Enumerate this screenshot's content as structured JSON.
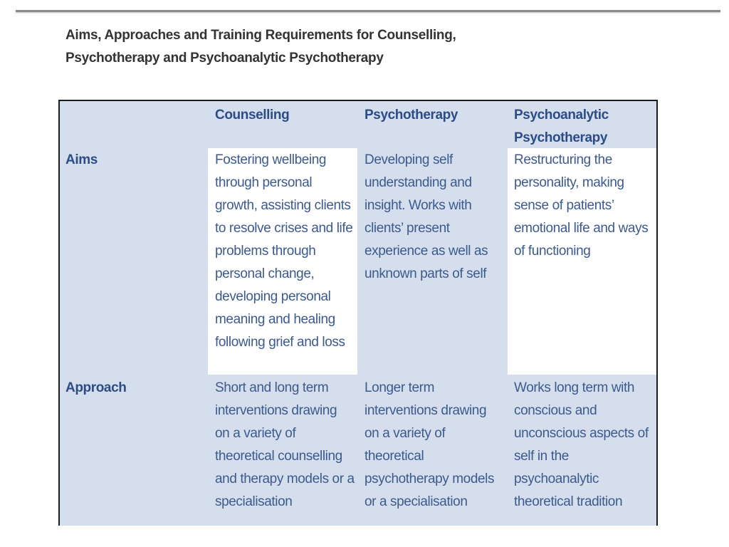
{
  "title": "Aims, Approaches and Training Requirements for Counselling, Psychotherapy and Psychoanalytic Psychotherapy",
  "table": {
    "columns": [
      "",
      "Counselling",
      "Psychotherapy",
      "Psychoanalytic Psychotherapy"
    ],
    "rows": [
      {
        "label": "Aims",
        "cells": [
          "Fostering wellbeing through personal growth, assisting clients to resolve crises and life problems through personal change, developing personal meaning and healing following grief and loss",
          "Developing self understanding and insight. Works with clients’ present experience as well as unknown parts of self",
          "Restructuring the personality, making sense of patients’ emotional life and ways of functioning"
        ]
      },
      {
        "label": "Approach",
        "cells": [
          "Short and long term interventions drawing on a variety of theoretical counselling and therapy models or a specialisation",
          "Longer term interventions drawing on a variety of theoretical psychotherapy models or a specialisation",
          "Works long term with conscious and unconscious aspects of self in the psychoanalytic theoretical tradition"
        ]
      }
    ]
  },
  "colors": {
    "table_background": "#d4deed",
    "heading_text": "#2c4c86",
    "body_text": "#3d5a8c",
    "title_text": "#333333"
  }
}
